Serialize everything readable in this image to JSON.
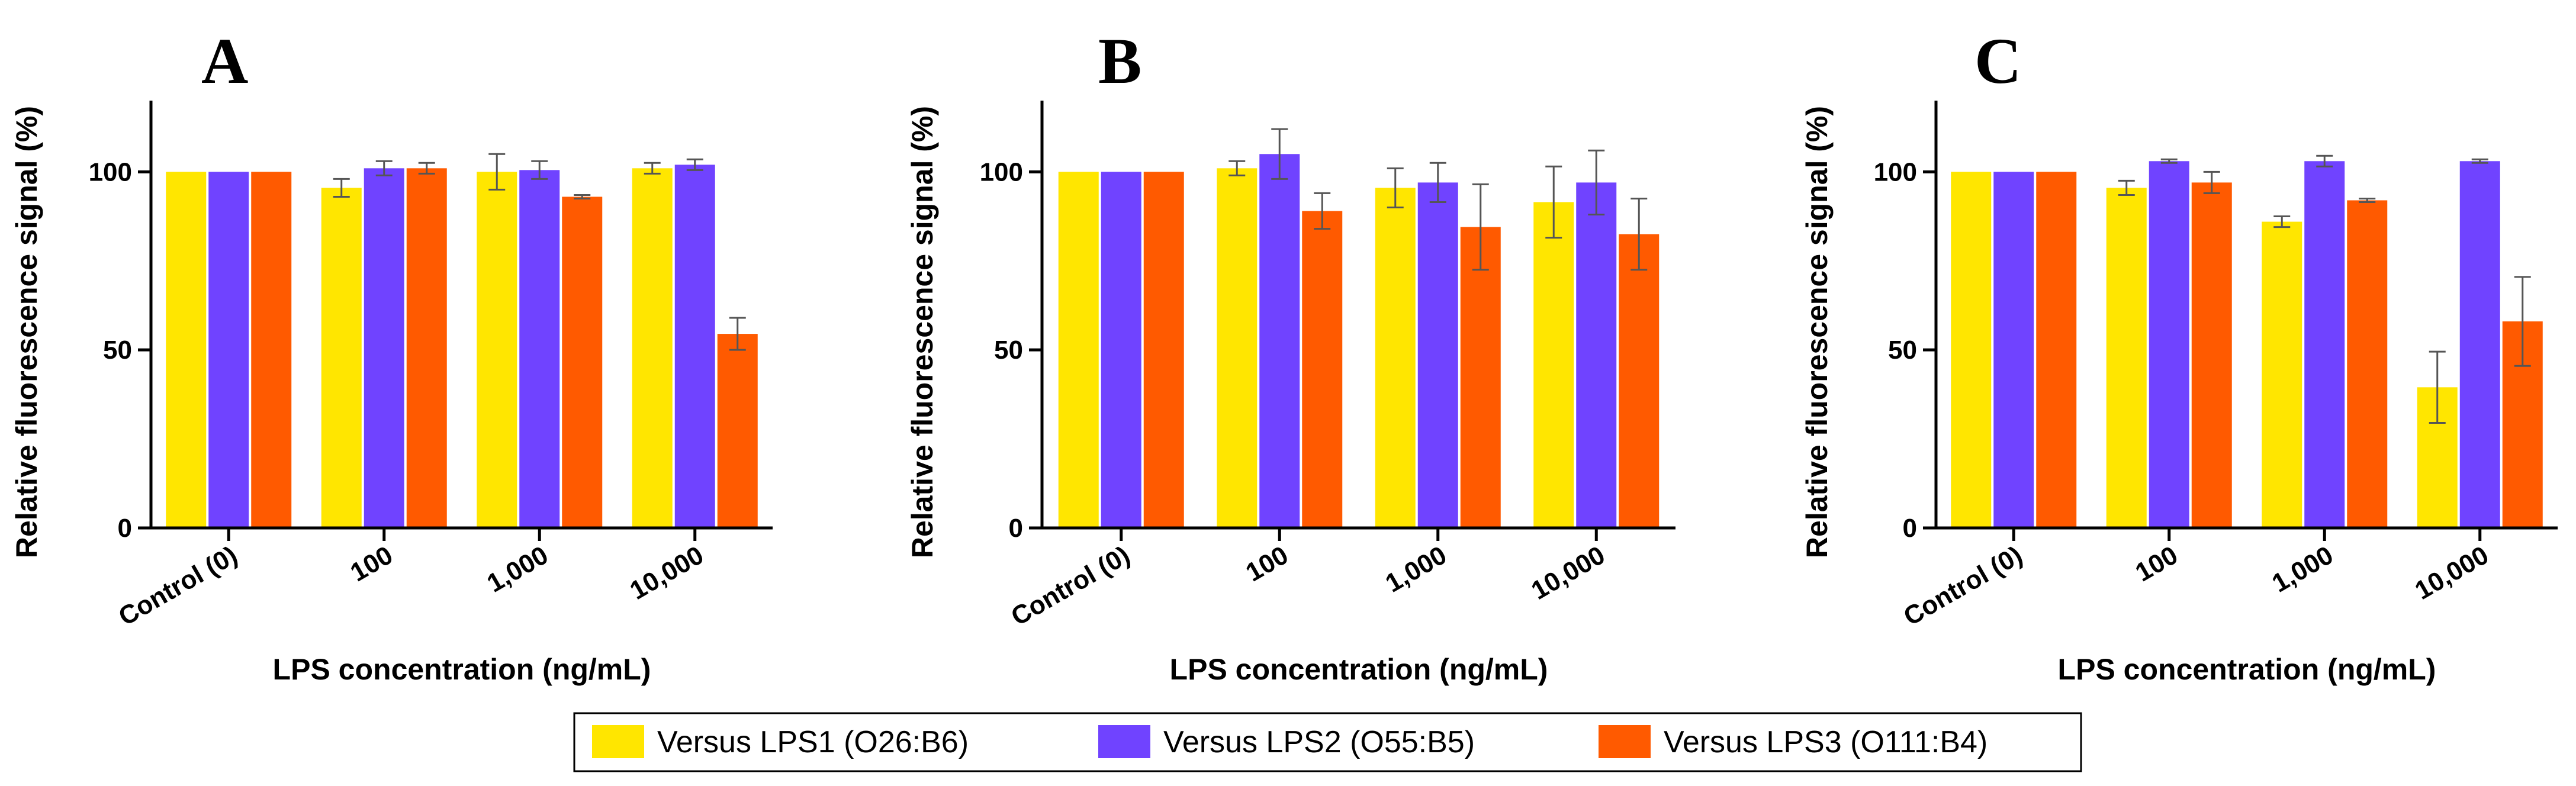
{
  "colors": {
    "series": [
      "#FFE600",
      "#7043FF",
      "#FF5A00"
    ],
    "axis": "#000000",
    "errorbar": "#555555"
  },
  "legend": {
    "entries": [
      "Versus LPS1 (O26:B6)",
      "Versus LPS2 (O55:B5)",
      "Versus LPS3 (O111:B4)"
    ]
  },
  "chart_data": [
    {
      "type": "bar",
      "panel": "A",
      "ylabel": "Relative fluorescence signal (%)",
      "xlabel": "LPS concentration (ng/mL)",
      "categories": [
        "Control (0)",
        "100",
        "1,000",
        "10,000"
      ],
      "ylim": [
        0,
        120
      ],
      "yticks": [
        0,
        50,
        100
      ],
      "series": [
        {
          "name": "Versus LPS1 (O26:B6)",
          "values": [
            100,
            95.5,
            100,
            101
          ],
          "errors": [
            0,
            2.5,
            5,
            1.5
          ]
        },
        {
          "name": "Versus LPS2 (O55:B5)",
          "values": [
            100,
            101,
            100.5,
            102
          ],
          "errors": [
            0,
            2,
            2.5,
            1.5
          ]
        },
        {
          "name": "Versus LPS3 (O111:B4)",
          "values": [
            100,
            101,
            93,
            54.5
          ],
          "errors": [
            0,
            1.5,
            0.5,
            4.5
          ]
        }
      ]
    },
    {
      "type": "bar",
      "panel": "B",
      "ylabel": "Relative fluorescence signal (%)",
      "xlabel": "LPS concentration (ng/mL)",
      "categories": [
        "Control (0)",
        "100",
        "1,000",
        "10,000"
      ],
      "ylim": [
        0,
        120
      ],
      "yticks": [
        0,
        50,
        100
      ],
      "series": [
        {
          "name": "Versus LPS1 (O26:B6)",
          "values": [
            100,
            101,
            95.5,
            91.5
          ],
          "errors": [
            0,
            2,
            5.5,
            10
          ]
        },
        {
          "name": "Versus LPS2 (O55:B5)",
          "values": [
            100,
            105,
            97,
            97
          ],
          "errors": [
            0,
            7,
            5.5,
            9
          ]
        },
        {
          "name": "Versus LPS3 (O111:B4)",
          "values": [
            100,
            89,
            84.5,
            82.5
          ],
          "errors": [
            0,
            5,
            12,
            10
          ]
        }
      ]
    },
    {
      "type": "bar",
      "panel": "C",
      "ylabel": "Relative fluorescence signal (%)",
      "xlabel": "LPS concentration (ng/mL)",
      "categories": [
        "Control (0)",
        "100",
        "1,000",
        "10,000"
      ],
      "ylim": [
        0,
        120
      ],
      "yticks": [
        0,
        50,
        100
      ],
      "series": [
        {
          "name": "Versus LPS1 (O26:B6)",
          "values": [
            100,
            95.5,
            86,
            39.5
          ],
          "errors": [
            0,
            2,
            1.5,
            10
          ]
        },
        {
          "name": "Versus LPS2 (O55:B5)",
          "values": [
            100,
            103,
            103,
            103
          ],
          "errors": [
            0,
            0.5,
            1.5,
            0.5
          ]
        },
        {
          "name": "Versus LPS3 (O111:B4)",
          "values": [
            100,
            97,
            92,
            58
          ],
          "errors": [
            0,
            3,
            0.5,
            12.5
          ]
        }
      ]
    }
  ]
}
